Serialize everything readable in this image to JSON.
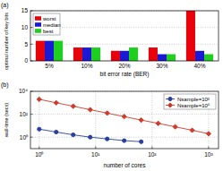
{
  "chart_data": [
    {
      "type": "bar",
      "title": "(a)",
      "x_label": "bit error rate (BER)",
      "y_label": "optimal number of key bits",
      "categories": [
        "5%",
        "10%",
        "20%",
        "30%",
        "40%"
      ],
      "series": [
        {
          "name": "worst",
          "color": "#e8000b",
          "values": [
            6,
            4,
            3,
            4,
            15
          ]
        },
        {
          "name": "median",
          "color": "#1a1ad6",
          "values": [
            6,
            4,
            3,
            2,
            3
          ]
        },
        {
          "name": "best",
          "color": "#1fcf1f",
          "values": [
            6,
            4,
            4,
            2,
            2
          ]
        }
      ],
      "ylim": [
        0,
        15
      ],
      "yticks": [
        0,
        5,
        10,
        15
      ],
      "grid": true,
      "legend": "top-left"
    },
    {
      "type": "line",
      "title": "(b)",
      "x_label": "number of cores",
      "y_label": "wall-time (secs)",
      "series": [
        {
          "name": "Nsample=10³",
          "color": "#2a3f9e",
          "marker": "circle",
          "x": [
            1,
            2,
            4,
            8,
            16,
            32,
            64
          ],
          "values": [
            5,
            2.8,
            1.6,
            1,
            0.7,
            0.5,
            0.4
          ]
        },
        {
          "name": "Nsample=10⁵",
          "color": "#d03a2a",
          "marker": "diamond",
          "x": [
            1,
            2,
            4,
            8,
            16,
            32,
            64,
            128,
            256,
            512,
            1000
          ],
          "values": [
            2000,
            1000,
            500,
            250,
            125,
            62,
            31,
            16,
            8,
            4,
            2
          ]
        }
      ],
      "log": true,
      "xlim": [
        0.7,
        1500
      ],
      "xticks": [
        {
          "value": 1,
          "label": "10⁰"
        },
        {
          "value": 10,
          "label": "10¹"
        },
        {
          "value": 100,
          "label": "10²"
        },
        {
          "value": 1000,
          "label": "10³"
        }
      ],
      "ylim": [
        0.1,
        10000
      ],
      "yticks": [
        {
          "value": 1,
          "label": "10⁰"
        },
        {
          "value": 100,
          "label": "10²"
        },
        {
          "value": 10000,
          "label": "10⁴"
        }
      ],
      "grid": true,
      "legend": "top-right"
    }
  ]
}
